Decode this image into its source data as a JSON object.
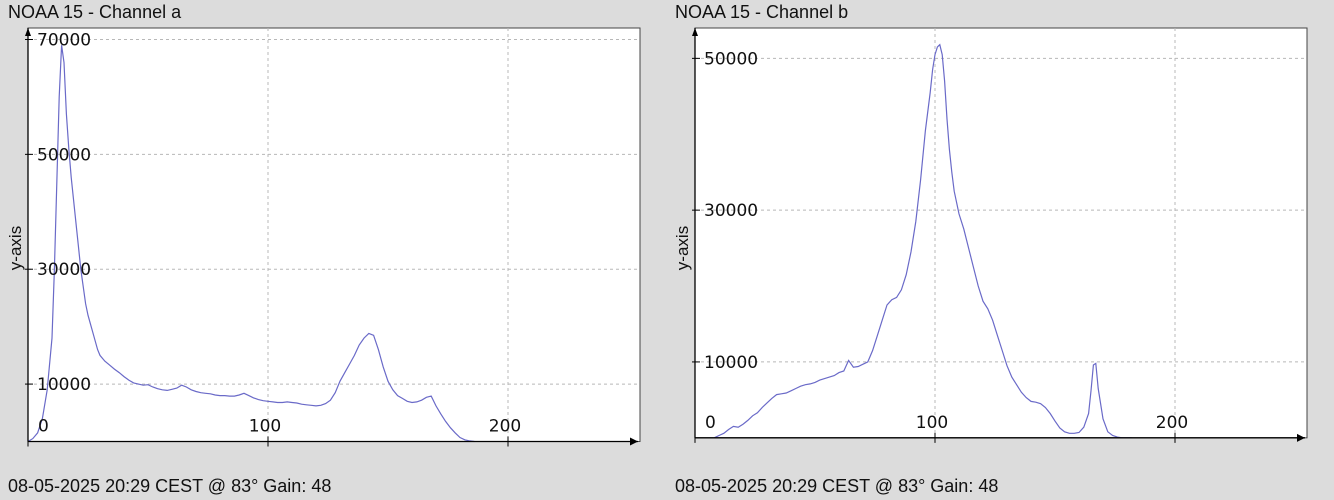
{
  "chart_data": [
    {
      "type": "line",
      "title": "NOAA 15 - Channel a",
      "ylabel": "y-axis",
      "footer": "08-05-2025 20:29 CEST @ 83° Gain: 48",
      "xlim": [
        0,
        255
      ],
      "ylim": [
        -2000,
        72000
      ],
      "xticks": [
        0,
        100,
        200
      ],
      "xtick_labels": [
        "0",
        "100",
        "200"
      ],
      "yticks": [
        10000,
        30000,
        50000,
        70000
      ],
      "ytick_labels": [
        "10000",
        "30000",
        "50000",
        "70000"
      ],
      "grid": true,
      "line_color": "#6a6ac8",
      "x": [
        0,
        2,
        4,
        6,
        8,
        10,
        11,
        12,
        13,
        14,
        15,
        16,
        17,
        18,
        19,
        20,
        21,
        22,
        23,
        24,
        25,
        26,
        27,
        28,
        29,
        30,
        32,
        34,
        36,
        38,
        40,
        42,
        44,
        46,
        48,
        50,
        52,
        54,
        56,
        58,
        60,
        62,
        64,
        66,
        68,
        70,
        72,
        74,
        76,
        78,
        80,
        82,
        84,
        86,
        88,
        90,
        92,
        94,
        96,
        98,
        100,
        102,
        104,
        106,
        108,
        110,
        112,
        114,
        116,
        118,
        120,
        122,
        124,
        126,
        128,
        130,
        132,
        134,
        136,
        138,
        140,
        142,
        144,
        146,
        148,
        150,
        152,
        154,
        156,
        158,
        160,
        162,
        164,
        166,
        168,
        170,
        172,
        174,
        176,
        178,
        180,
        182,
        184,
        186
      ],
      "y": [
        0,
        500,
        1500,
        4000,
        9000,
        18000,
        30000,
        45000,
        60000,
        69000,
        66000,
        57000,
        51000,
        46000,
        42000,
        38000,
        34000,
        30000,
        27000,
        24000,
        22000,
        20500,
        19000,
        17500,
        16000,
        15000,
        14000,
        13300,
        12600,
        12000,
        11300,
        10700,
        10200,
        10000,
        9800,
        9900,
        9500,
        9200,
        9000,
        8900,
        9100,
        9300,
        9800,
        9500,
        9000,
        8700,
        8500,
        8400,
        8300,
        8100,
        8000,
        8000,
        7900,
        7900,
        8100,
        8400,
        8000,
        7600,
        7300,
        7100,
        7000,
        6900,
        6800,
        6800,
        6900,
        6800,
        6700,
        6500,
        6400,
        6300,
        6200,
        6300,
        6600,
        7200,
        8500,
        10500,
        12000,
        13500,
        15000,
        16800,
        18000,
        18800,
        18500,
        16000,
        13000,
        10500,
        9000,
        8000,
        7500,
        7000,
        6800,
        6900,
        7200,
        7700,
        7900,
        6200,
        4800,
        3500,
        2400,
        1500,
        700,
        300,
        100,
        0
      ]
    },
    {
      "type": "line",
      "title": "NOAA 15 - Channel b",
      "ylabel": "y-axis",
      "footer": "08-05-2025 20:29 CEST @ 83° Gain: 48",
      "xlim": [
        0,
        255
      ],
      "ylim": [
        -2000,
        54000
      ],
      "xticks": [
        0,
        100,
        200
      ],
      "xtick_labels": [
        "0",
        "100",
        "200"
      ],
      "yticks": [
        10000,
        30000,
        50000
      ],
      "ytick_labels": [
        "10000",
        "30000",
        "50000"
      ],
      "grid": true,
      "line_color": "#6a6ac8",
      "x": [
        8,
        10,
        12,
        14,
        16,
        18,
        20,
        22,
        24,
        26,
        28,
        30,
        32,
        34,
        36,
        38,
        40,
        42,
        44,
        46,
        48,
        50,
        52,
        54,
        56,
        58,
        60,
        62,
        64,
        66,
        68,
        70,
        72,
        74,
        76,
        78,
        80,
        82,
        84,
        86,
        88,
        90,
        92,
        94,
        96,
        98,
        99,
        100,
        101,
        102,
        103,
        104,
        105,
        106,
        107,
        108,
        110,
        112,
        114,
        116,
        118,
        120,
        122,
        124,
        126,
        128,
        130,
        132,
        134,
        136,
        138,
        140,
        142,
        144,
        146,
        148,
        150,
        152,
        154,
        156,
        158,
        160,
        162,
        164,
        165,
        166,
        167,
        168,
        170,
        172,
        174,
        176,
        178,
        180,
        182
      ],
      "y": [
        0,
        300,
        600,
        1100,
        1500,
        1400,
        1800,
        2300,
        2900,
        3300,
        4000,
        4600,
        5200,
        5700,
        5800,
        5900,
        6200,
        6500,
        6800,
        7000,
        7100,
        7300,
        7600,
        7800,
        8000,
        8200,
        8600,
        8800,
        10200,
        9300,
        9400,
        9700,
        10000,
        11500,
        13500,
        15500,
        17500,
        18200,
        18500,
        19500,
        21500,
        24500,
        28500,
        34000,
        40500,
        45500,
        48500,
        50500,
        51500,
        51800,
        50500,
        47000,
        42000,
        38000,
        35000,
        32500,
        29500,
        27500,
        25000,
        22500,
        20000,
        18000,
        17000,
        15500,
        13500,
        11500,
        9500,
        8000,
        7000,
        6000,
        5300,
        4800,
        4700,
        4500,
        4000,
        3200,
        2200,
        1300,
        800,
        600,
        600,
        700,
        1400,
        3200,
        6200,
        9600,
        9800,
        6500,
        2500,
        800,
        300,
        100,
        0,
        0,
        0
      ]
    }
  ]
}
